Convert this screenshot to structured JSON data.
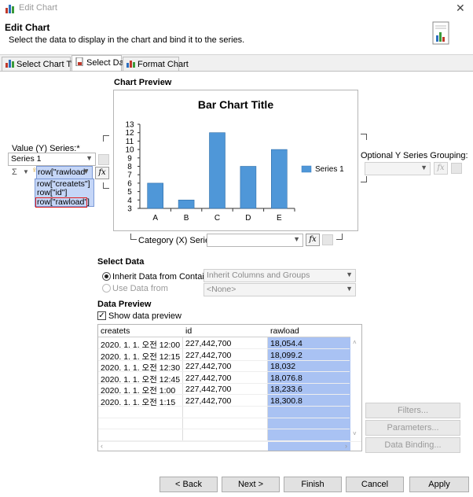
{
  "window": {
    "title": "Edit Chart",
    "close_glyph": "✕"
  },
  "header": {
    "title": "Edit Chart",
    "subtitle": "Select the data to display in the chart and bind it to the series."
  },
  "tabs": [
    {
      "label": "Select Chart Type",
      "icon": "bar-chart-icon"
    },
    {
      "label": "Select Data",
      "icon": "data-icon"
    },
    {
      "label": "Format Chart",
      "icon": "format-icon"
    }
  ],
  "chart_preview": {
    "heading": "Chart Preview",
    "chart_data": {
      "type": "bar",
      "title": "Bar Chart Title",
      "categories": [
        "A",
        "B",
        "C",
        "D",
        "E"
      ],
      "series": [
        {
          "name": "Series 1",
          "values": [
            6,
            4,
            12,
            8,
            10
          ]
        }
      ],
      "ylim": [
        3,
        13
      ],
      "yticks": [
        3,
        4,
        5,
        6,
        7,
        8,
        9,
        10,
        11,
        12,
        13
      ],
      "legend": "right",
      "bar_color": "#4f97d8"
    }
  },
  "value_series": {
    "label": "Value (Y) Series:*",
    "series_select": "Series 1",
    "sigma": "Σ",
    "expression": "row[\"rawload\"",
    "fx": "fx",
    "suggestions": [
      "row[\"createts\"]",
      "row[\"id\"]",
      "row[\"rawload\"]"
    ],
    "selected_suggestion": "row[\"rawload\"]"
  },
  "optional_grouping": {
    "label": "Optional Y Series Grouping:"
  },
  "category_series": {
    "label": "Category (X) Series:*",
    "fx": "fx"
  },
  "select_data": {
    "heading": "Select Data",
    "inherit_label": "Inherit Data from Container",
    "inherit_value": "Inherit Columns and Groups",
    "use_label": "Use Data from",
    "use_value": "<None>"
  },
  "data_preview": {
    "heading": "Data Preview",
    "show_label": "Show data preview",
    "check_glyph": "✓",
    "columns": [
      "createts",
      "id",
      "rawload"
    ],
    "rows": [
      [
        "2020. 1. 1. 오전 12:00",
        "227,442,700",
        "18,054.4"
      ],
      [
        "2020. 1. 1. 오전 12:15",
        "227,442,700",
        "18,099.2"
      ],
      [
        "2020. 1. 1. 오전 12:30",
        "227,442,700",
        "18,032"
      ],
      [
        "2020. 1. 1. 오전 12:45",
        "227,442,700",
        "18,076.8"
      ],
      [
        "2020. 1. 1. 오전 1:00",
        "227,442,700",
        "18,233.6"
      ],
      [
        "2020. 1. 1. 오전 1:15",
        "227,442,700",
        "18,300.8"
      ]
    ]
  },
  "side_buttons": {
    "filters": "Filters...",
    "parameters": "Parameters...",
    "binding": "Data Binding..."
  },
  "footer": {
    "back": "< Back",
    "next": "Next >",
    "finish": "Finish",
    "cancel": "Cancel",
    "apply": "Apply"
  },
  "colors": {
    "selection": "#a9c2f3",
    "highlight_box": "#e02020",
    "bar": "#4f97d8"
  }
}
